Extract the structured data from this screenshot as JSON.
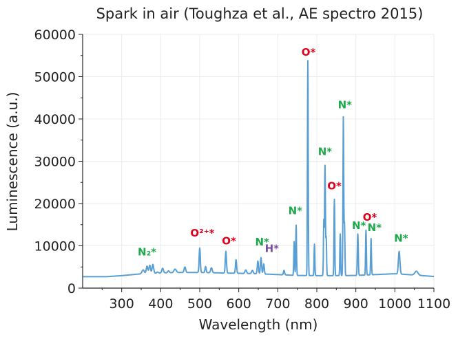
{
  "chart_data": {
    "type": "line",
    "title": "Spark in air (Toughza et al., AE spectro 2015)",
    "xlabel": "Wavelength (nm)",
    "ylabel": "Luminescence (a.u.)",
    "xlim": [
      200,
      1100
    ],
    "ylim": [
      0,
      60000
    ],
    "xticks": [
      "300",
      "400",
      "500",
      "600",
      "700",
      "800",
      "900",
      "1000",
      "1100"
    ],
    "yticks": [
      "0",
      "10000",
      "20000",
      "30000",
      "40000",
      "50000",
      "60000"
    ],
    "grid": true,
    "legend": "none",
    "series": [
      {
        "color": "#5a9fd4",
        "baseline": [
          [
            200,
            2700
          ],
          [
            260,
            2700
          ],
          [
            300,
            2950
          ],
          [
            340,
            3300
          ],
          [
            400,
            3600
          ],
          [
            450,
            3700
          ],
          [
            500,
            3700
          ],
          [
            550,
            3600
          ],
          [
            600,
            3500
          ],
          [
            650,
            3400
          ],
          [
            700,
            3200
          ],
          [
            750,
            3000
          ],
          [
            800,
            2950
          ],
          [
            850,
            2950
          ],
          [
            900,
            3000
          ],
          [
            950,
            3200
          ],
          [
            1000,
            3400
          ],
          [
            1050,
            3100
          ],
          [
            1100,
            2750
          ]
        ],
        "peaks": [
          [
            355,
            4300,
            3
          ],
          [
            365,
            5200,
            2
          ],
          [
            372,
            5400,
            2
          ],
          [
            380,
            5600,
            2
          ],
          [
            392,
            3800,
            2
          ],
          [
            405,
            4700,
            2
          ],
          [
            420,
            4100,
            2
          ],
          [
            437,
            4500,
            3
          ],
          [
            462,
            5000,
            2
          ],
          [
            500,
            9500,
            1.5
          ],
          [
            515,
            5100,
            1.5
          ],
          [
            530,
            4800,
            2
          ],
          [
            567,
            8700,
            1.5
          ],
          [
            593,
            6700,
            1.5
          ],
          [
            618,
            4300,
            2
          ],
          [
            635,
            4200,
            2
          ],
          [
            649,
            6400,
            1.5
          ],
          [
            657,
            7200,
            1.5
          ],
          [
            664,
            5700,
            1.5
          ],
          [
            716,
            4200,
            1.5
          ],
          [
            742,
            11000,
            1
          ],
          [
            747,
            14900,
            1
          ],
          [
            777,
            53800,
            1
          ],
          [
            794,
            10400,
            1
          ],
          [
            818,
            16000,
            1
          ],
          [
            821,
            28800,
            1
          ],
          [
            824,
            12000,
            1
          ],
          [
            845,
            21000,
            1
          ],
          [
            860,
            12800,
            1
          ],
          [
            868,
            40400,
            1
          ],
          [
            871,
            15200,
            1
          ],
          [
            905,
            12800,
            1.2
          ],
          [
            926,
            13700,
            1
          ],
          [
            939,
            11700,
            1
          ],
          [
            1011,
            8700,
            2
          ],
          [
            1055,
            4000,
            4
          ]
        ]
      }
    ],
    "annotations": [
      {
        "text": "O*",
        "x": 779,
        "y": 55000,
        "color": "#e0001b"
      },
      {
        "text": "N*",
        "x": 872,
        "y": 42500,
        "color": "#1eaa4c"
      },
      {
        "text": "N*",
        "x": 821,
        "y": 31500,
        "color": "#1eaa4c"
      },
      {
        "text": "O*",
        "x": 845,
        "y": 23300,
        "color": "#e0001b"
      },
      {
        "text": "N*",
        "x": 745,
        "y": 17500,
        "color": "#1eaa4c"
      },
      {
        "text": "O*",
        "x": 936,
        "y": 15900,
        "color": "#e0001b"
      },
      {
        "text": "N*",
        "x": 908,
        "y": 14000,
        "color": "#1eaa4c"
      },
      {
        "text": "N*",
        "x": 948,
        "y": 13500,
        "color": "#1eaa4c"
      },
      {
        "text": "N*",
        "x": 1016,
        "y": 11000,
        "color": "#1eaa4c"
      },
      {
        "text": "O²⁺*",
        "x": 507,
        "y": 12200,
        "color": "#e0001b"
      },
      {
        "text": "O*",
        "x": 575,
        "y": 10300,
        "color": "#e0001b"
      },
      {
        "text": "N*",
        "x": 660,
        "y": 10100,
        "color": "#1eaa4c"
      },
      {
        "text": "H*",
        "x": 685,
        "y": 8500,
        "color": "#7b4f9e"
      },
      {
        "text": "N₂*",
        "x": 365,
        "y": 7700,
        "color": "#1eaa4c"
      }
    ]
  }
}
